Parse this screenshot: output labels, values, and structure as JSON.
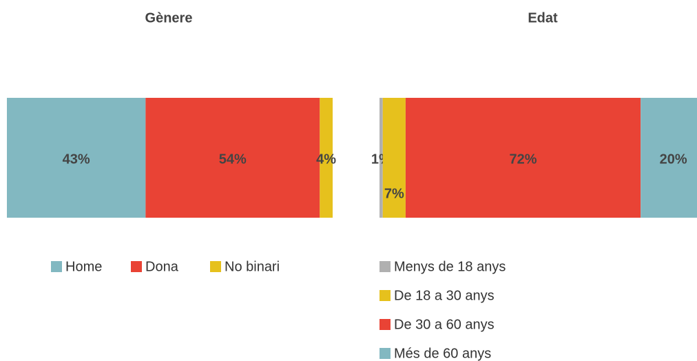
{
  "chart_data": [
    {
      "type": "bar",
      "orientation": "horizontal",
      "stacked": true,
      "title": "Gènere",
      "series": [
        {
          "name": "Home",
          "color": "#82b8c1",
          "values": [
            43
          ],
          "value_labels": [
            "43%"
          ]
        },
        {
          "name": "Dona",
          "color": "#e94335",
          "values": [
            54
          ],
          "value_labels": [
            "54%"
          ]
        },
        {
          "name": "No binari",
          "color": "#e6c11d",
          "values": [
            4
          ],
          "value_labels": [
            "4%"
          ]
        }
      ]
    },
    {
      "type": "bar",
      "orientation": "horizontal",
      "stacked": true,
      "title": "Edat",
      "series": [
        {
          "name": "Menys de 18 anys",
          "color": "#b0b0b0",
          "values": [
            1
          ],
          "value_labels": [
            "1%"
          ]
        },
        {
          "name": "De 18 a 30 anys",
          "color": "#e6c11d",
          "values": [
            7
          ],
          "value_labels": [
            "7%"
          ]
        },
        {
          "name": "De 30 a 60 anys",
          "color": "#e94335",
          "values": [
            72
          ],
          "value_labels": [
            "72%"
          ]
        },
        {
          "name": "Més de 60 anys",
          "color": "#82b8c1",
          "values": [
            20
          ],
          "value_labels": [
            "20%"
          ]
        }
      ]
    }
  ]
}
